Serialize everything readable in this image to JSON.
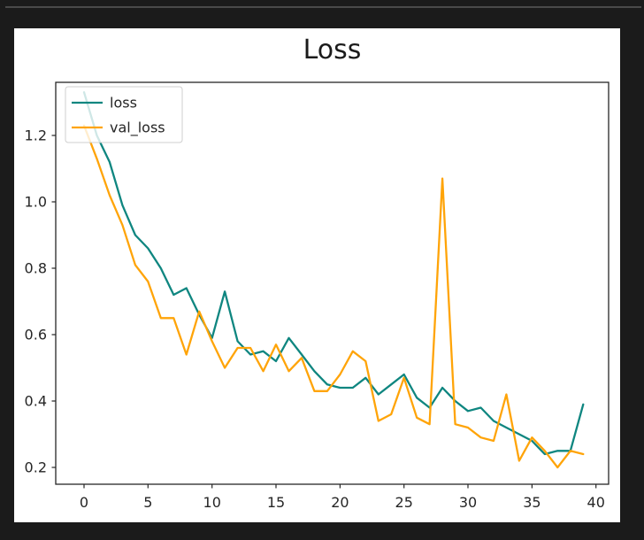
{
  "window": {
    "background_color": "#1b1b1b",
    "top_border_color": "#4a4a4a",
    "figure_background": "#ffffff"
  },
  "chart_data": {
    "type": "line",
    "title": "Loss",
    "xlabel": "",
    "ylabel": "",
    "grid": false,
    "legend_position": "upper left",
    "xlim": [
      -1.95,
      40.95
    ],
    "ylim": [
      0.15,
      1.36
    ],
    "x_ticks": [
      0,
      5,
      10,
      15,
      20,
      25,
      30,
      35,
      40
    ],
    "y_tick_labels": [
      "0.2",
      "0.4",
      "0.6",
      "0.8",
      "1.0",
      "1.2"
    ],
    "y_tick_values": [
      0.2,
      0.4,
      0.6,
      0.8,
      1.0,
      1.2
    ],
    "x": [
      0,
      1,
      2,
      3,
      4,
      5,
      6,
      7,
      8,
      9,
      10,
      11,
      12,
      13,
      14,
      15,
      16,
      17,
      18,
      19,
      20,
      21,
      22,
      23,
      24,
      25,
      26,
      27,
      28,
      29,
      30,
      31,
      32,
      33,
      34,
      35,
      36,
      37,
      38,
      39
    ],
    "series": [
      {
        "name": "loss",
        "color": "#0f8680",
        "values": [
          1.33,
          1.2,
          1.12,
          0.99,
          0.9,
          0.86,
          0.8,
          0.72,
          0.74,
          0.66,
          0.59,
          0.73,
          0.58,
          0.54,
          0.55,
          0.52,
          0.59,
          0.54,
          0.49,
          0.45,
          0.44,
          0.44,
          0.47,
          0.42,
          0.45,
          0.48,
          0.41,
          0.38,
          0.44,
          0.4,
          0.37,
          0.38,
          0.34,
          0.32,
          0.3,
          0.28,
          0.24,
          0.25,
          0.25,
          0.39
        ]
      },
      {
        "name": "val_loss",
        "color": "#ffa408",
        "values": [
          1.23,
          1.13,
          1.02,
          0.93,
          0.81,
          0.76,
          0.65,
          0.65,
          0.54,
          0.67,
          0.58,
          0.5,
          0.56,
          0.56,
          0.49,
          0.57,
          0.49,
          0.53,
          0.43,
          0.43,
          0.48,
          0.55,
          0.52,
          0.34,
          0.36,
          0.47,
          0.35,
          0.33,
          1.07,
          0.33,
          0.32,
          0.29,
          0.28,
          0.42,
          0.22,
          0.29,
          0.25,
          0.2,
          0.25,
          0.24
        ]
      }
    ]
  }
}
